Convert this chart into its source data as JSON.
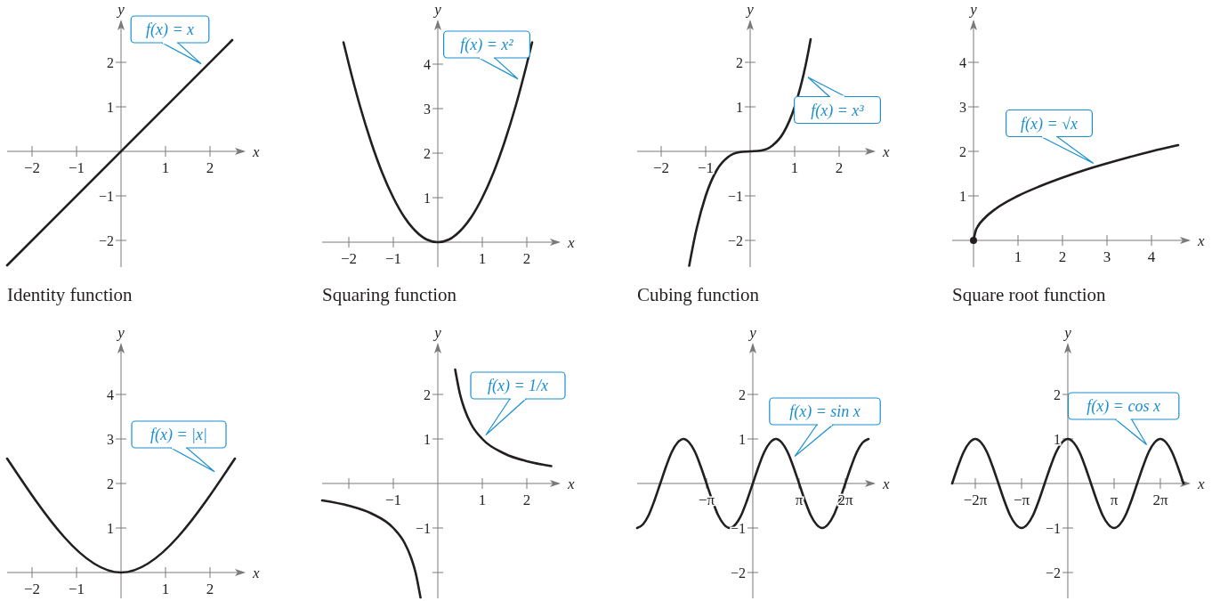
{
  "chart_data": [
    {
      "type": "line",
      "title": "Identity function",
      "xlabel": "x",
      "ylabel": "y",
      "xlim": [
        -2.56,
        2.8
      ],
      "ylim": [
        -2.6,
        2.96
      ],
      "xticks": [
        -2,
        -1,
        1,
        2
      ],
      "yticks": [
        -2,
        -1,
        1,
        2
      ],
      "series": [
        {
          "color": "#231f20",
          "x": [
            -2.56,
            2.5
          ],
          "values": [
            -2.56,
            2.5
          ]
        }
      ],
      "annotations": [
        {
          "text": "f(x) = x",
          "x": 1.9,
          "y": 1.9
        }
      ]
    },
    {
      "type": "line",
      "title": "Squaring function",
      "xlabel": "x",
      "ylabel": "y",
      "xlim": [
        -2.6,
        2.76
      ],
      "ylim": [
        -0.56,
        5.0
      ],
      "xticks": [
        -2,
        -1,
        1,
        2
      ],
      "yticks": [
        1,
        2,
        3,
        4
      ],
      "series": [
        {
          "color": "#231f20",
          "x": [
            -2.12,
            -2,
            -1.75,
            -1.5,
            -1.25,
            -1,
            -0.75,
            -0.5,
            -0.25,
            0,
            0.25,
            0.5,
            0.75,
            1,
            1.25,
            1.5,
            1.75,
            2,
            2.12
          ],
          "values": [
            4.49,
            4,
            3.06,
            2.25,
            1.56,
            1,
            0.56,
            0.25,
            0.06,
            0,
            0.06,
            0.25,
            0.56,
            1,
            1.56,
            2.25,
            3.06,
            4,
            4.49
          ]
        }
      ],
      "annotations": [
        {
          "text": "f(x) = x²",
          "x": 1.9,
          "y": 3.6
        }
      ]
    },
    {
      "type": "line",
      "title": "Cubing function",
      "xlabel": "x",
      "ylabel": "y",
      "xlim": [
        -2.54,
        2.82
      ],
      "ylim": [
        -2.6,
        2.96
      ],
      "xticks": [
        -2,
        -1,
        1,
        2
      ],
      "yticks": [
        -2,
        -1,
        1,
        2
      ],
      "series": [
        {
          "color": "#231f20",
          "x": [
            -1.37,
            -1.25,
            -1,
            -0.75,
            -0.5,
            -0.25,
            0,
            0.25,
            0.5,
            0.75,
            1,
            1.25,
            1.36
          ],
          "values": [
            -2.57,
            -1.95,
            -1,
            -0.42,
            -0.13,
            -0.02,
            0,
            0.02,
            0.13,
            0.42,
            1,
            1.95,
            2.52
          ]
        }
      ],
      "annotations": [
        {
          "text": "f(x) = x³",
          "x": 1.2,
          "y": 1.73
        }
      ]
    },
    {
      "type": "line",
      "title": "Square root function",
      "xlabel": "x",
      "ylabel": "y",
      "xlim": [
        -0.48,
        4.88
      ],
      "ylim": [
        -0.6,
        4.96
      ],
      "xticks": [
        1,
        2,
        3,
        4
      ],
      "yticks": [
        1,
        2,
        3,
        4
      ],
      "series": [
        {
          "color": "#231f20",
          "x": [
            0,
            0.05,
            0.1,
            0.25,
            0.5,
            1,
            1.5,
            2,
            2.5,
            3,
            3.5,
            4,
            4.6
          ],
          "values": [
            0,
            0.22,
            0.32,
            0.5,
            0.71,
            1,
            1.22,
            1.41,
            1.58,
            1.73,
            1.87,
            2,
            2.14
          ]
        },
        {
          "type": "scatter",
          "marker": "circle",
          "color": "#231f20",
          "x": [
            0
          ],
          "values": [
            0
          ]
        }
      ],
      "annotations": [
        {
          "text": "f(x) = √x",
          "x": 2.8,
          "y": 1.67
        }
      ]
    },
    {
      "type": "line",
      "xlabel": "x",
      "ylabel": "y",
      "xlim": [
        -2.56,
        2.8
      ],
      "ylim": [
        -0.58,
        5.16
      ],
      "xticks": [
        -2,
        -1,
        1,
        2
      ],
      "yticks": [
        1,
        2,
        3,
        4
      ],
      "series": [
        {
          "color": "#231f20",
          "x": [
            -2.56,
            0,
            2.56
          ],
          "values": [
            2.56,
            0,
            2.56
          ]
        }
      ],
      "annotations": [
        {
          "text": "f(x) = |x|",
          "x": 2.2,
          "y": 2.2
        }
      ]
    },
    {
      "type": "line",
      "xlabel": "x",
      "ylabel": "y",
      "xlim": [
        -2.6,
        2.76
      ],
      "ylim": [
        -2.58,
        3.16
      ],
      "xticks": [
        {
          "value": -2,
          "label": null
        },
        -1,
        1,
        2
      ],
      "yticks": [
        {
          "value": -2,
          "label": null
        },
        -1,
        1,
        2
      ],
      "series": [
        {
          "color": "#231f20",
          "x": [
            -2.6,
            -2,
            -1.5,
            -1,
            -0.75,
            -0.6,
            -0.5,
            -0.39,
            0,
            0.39,
            0.5,
            0.6,
            0.75,
            1,
            1.5,
            2,
            2.55
          ],
          "values": [
            -0.38,
            -0.5,
            -0.67,
            -1,
            -1.33,
            -1.67,
            -2,
            -2.56,
            null,
            2.56,
            2,
            1.67,
            1.33,
            1,
            0.67,
            0.5,
            0.39
          ]
        }
      ],
      "annotations": [
        {
          "text": "f(x) = 1/x",
          "x": 1,
          "y": 1
        }
      ]
    },
    {
      "type": "line",
      "xlabel": "x",
      "ylabel": "y",
      "xlim": [
        -7.854,
        8.34
      ],
      "ylim": [
        -2.58,
        3.16
      ],
      "xticks": [
        {
          "value": -3.1416,
          "label": "−π"
        },
        {
          "value": 3.1416,
          "label": "π"
        },
        {
          "value": 6.2832,
          "label": "2π"
        }
      ],
      "yticks": [
        -2,
        -1,
        1,
        2
      ],
      "series": [
        {
          "color": "#231f20",
          "x": [
            -7.854,
            -7.461,
            -7.069,
            -6.676,
            -6.283,
            -5.89,
            -5.498,
            -5.105,
            -4.712,
            -4.32,
            -3.927,
            -3.534,
            -3.142,
            -2.749,
            -2.356,
            -1.963,
            -1.571,
            -1.0,
            -0.785,
            -0.393,
            0,
            0.393,
            0.785,
            1.178,
            1.571,
            1.963,
            2.356,
            2.749,
            3.142,
            3.534,
            3.927,
            4.32,
            4.712,
            5.105,
            5.498,
            5.89,
            6.283,
            6.676,
            7.069,
            7.461,
            7.854
          ],
          "values": [
            -1,
            -0.92,
            -0.71,
            -0.38,
            0,
            0.38,
            0.71,
            0.92,
            1,
            0.92,
            0.71,
            0.38,
            0,
            -0.38,
            -0.71,
            -0.92,
            -1,
            -0.84,
            -0.71,
            -0.38,
            0,
            0.38,
            0.71,
            0.92,
            1,
            0.92,
            0.71,
            0.38,
            0,
            -0.38,
            -0.71,
            -0.92,
            -1,
            -0.92,
            -0.71,
            -0.38,
            0,
            0.38,
            0.71,
            0.92,
            1
          ]
        }
      ],
      "annotations": [
        {
          "text": "f(x) = sin x",
          "x": 2.6,
          "y": 0.52
        }
      ]
    },
    {
      "type": "line",
      "xlabel": "x",
      "ylabel": "y",
      "xlim": [
        -7.854,
        8.34
      ],
      "ylim": [
        -2.58,
        3.16
      ],
      "xticks": [
        {
          "value": -6.2832,
          "label": "−2π"
        },
        {
          "value": -3.1416,
          "label": "−π"
        },
        {
          "value": 3.1416,
          "label": "π"
        },
        {
          "value": 6.2832,
          "label": "2π"
        }
      ],
      "yticks": [
        -2,
        -1,
        1,
        2
      ],
      "series": [
        {
          "color": "#231f20",
          "x": [
            -7.854,
            -7.461,
            -7.069,
            -6.676,
            -6.283,
            -5.89,
            -5.498,
            -5.105,
            -4.712,
            -4.32,
            -3.927,
            -3.534,
            -3.142,
            -2.749,
            -2.356,
            -1.963,
            -1.571,
            -1.178,
            -0.785,
            -0.393,
            0,
            0.393,
            0.785,
            1.178,
            1.571,
            1.963,
            2.356,
            2.749,
            3.142,
            3.534,
            3.927,
            4.32,
            4.712,
            5.105,
            5.498,
            5.89,
            6.283,
            6.676,
            7.069,
            7.461,
            7.854
          ],
          "values": [
            0,
            0.38,
            0.71,
            0.92,
            1,
            0.92,
            0.71,
            0.38,
            0,
            -0.38,
            -0.71,
            -0.92,
            -1,
            -0.92,
            -0.71,
            -0.38,
            0,
            0.38,
            0.71,
            0.92,
            1,
            0.92,
            0.71,
            0.38,
            0,
            -0.38,
            -0.71,
            -0.92,
            -1,
            -0.92,
            -0.71,
            -0.38,
            0,
            0.38,
            0.71,
            0.92,
            1,
            0.92,
            0.71,
            0.38,
            0
          ]
        }
      ],
      "annotations": [
        {
          "text": "f(x) = cos x",
          "x": 5.6,
          "y": 0.78
        }
      ]
    }
  ]
}
